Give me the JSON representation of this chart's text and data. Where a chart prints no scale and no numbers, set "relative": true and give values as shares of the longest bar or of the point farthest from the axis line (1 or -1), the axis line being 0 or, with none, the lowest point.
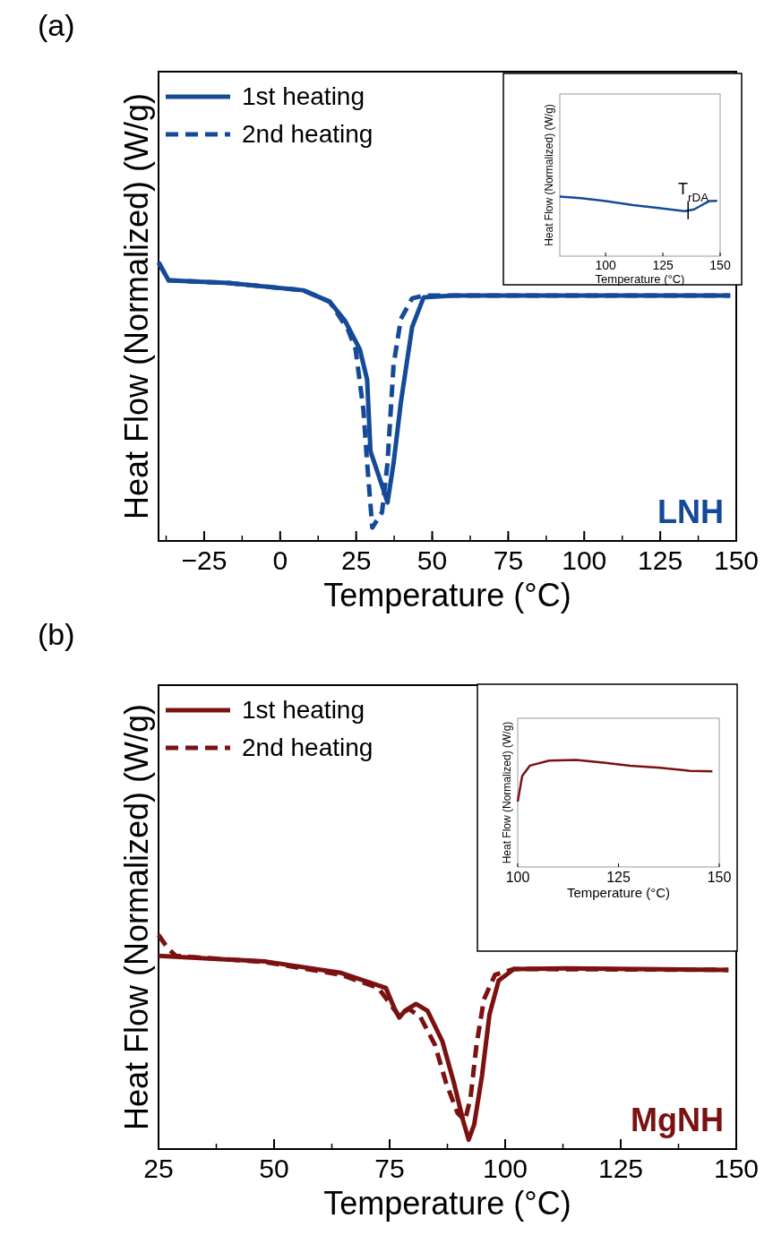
{
  "chart_data": [
    {
      "type": "line",
      "xlabel": "Temperature (°C)",
      "ylabel": "Heat Flow (Normalized) (W/g)",
      "relative": true,
      "xlim": [
        -40,
        150
      ],
      "xticks": [
        -25,
        0,
        25,
        50,
        75,
        100,
        125,
        150
      ],
      "legend": "top left",
      "annotations": [
        "(a)",
        "LNH"
      ],
      "series": [
        {
          "name": "1st heating",
          "color": "#154a99",
          "line_style": "solid",
          "x": [
            -40,
            -36.7,
            -16.9,
            7.6,
            16.3,
            21.3,
            26.2,
            28.6,
            29.7,
            33.5,
            35.3,
            37.3,
            39.7,
            43.4,
            47.2,
            56.9,
            148
          ],
          "values": [
            1.0,
            0.936,
            0.926,
            0.9,
            0.859,
            0.791,
            0.688,
            0.579,
            0.322,
            0.199,
            0.138,
            0.28,
            0.498,
            0.768,
            0.875,
            0.881,
            0.881
          ]
        },
        {
          "name": "2nd heating",
          "color": "#154a99",
          "line_style": "dashed",
          "x": [
            -40,
            -36.7,
            -16.9,
            7.6,
            16.3,
            22.4,
            24.8,
            27.4,
            28.6,
            30.3,
            33.5,
            35.3,
            37.3,
            39.7,
            43.4,
            47.2,
            56.9,
            148
          ],
          "values": [
            1.0,
            0.936,
            0.926,
            0.9,
            0.859,
            0.756,
            0.688,
            0.469,
            0.28,
            0.048,
            0.103,
            0.28,
            0.633,
            0.797,
            0.871,
            0.881,
            0.881,
            0.881
          ]
        }
      ]
    },
    {
      "type": "line",
      "xlabel": "Temperature (°C)",
      "ylabel": "Heat Flow (Normalized) (W/g)",
      "relative": true,
      "xlim": [
        80,
        150
      ],
      "xticks": [
        100,
        125,
        150
      ],
      "annotations": [
        {
          "text": "T$_{rDA}$",
          "x": 136,
          "y": 0.77
        }
      ],
      "series": [
        {
          "color": "#154a99",
          "x": [
            80,
            89.3,
            100,
            112,
            124,
            134.7,
            138.7,
            142.7,
            145.3,
            148.7
          ],
          "values": [
            1.0,
            0.974,
            0.923,
            0.856,
            0.805,
            0.754,
            0.785,
            0.872,
            0.923,
            0.928
          ]
        }
      ]
    },
    {
      "type": "line",
      "xlabel": "Temperature (°C)",
      "ylabel": "Heat Flow (Normalized) (W/g)",
      "relative": true,
      "xlim": [
        25,
        150
      ],
      "xticks": [
        25,
        50,
        75,
        100,
        125,
        150
      ],
      "legend": "top left",
      "annotations": [
        "(b)",
        "MgNH"
      ],
      "series": [
        {
          "name": "1st heating",
          "color": "#7b1111",
          "line_style": "solid",
          "x": [
            25,
            48.2,
            64.5,
            74.2,
            75.9,
            77.1,
            78.3,
            80.7,
            83.2,
            86.4,
            88.9,
            90.9,
            92.1,
            93.3,
            95.0,
            96.6,
            98.6,
            101.9,
            113.3,
            148.3
          ],
          "values": [
            0.903,
            0.876,
            0.823,
            0.752,
            0.664,
            0.614,
            0.646,
            0.678,
            0.646,
            0.504,
            0.31,
            0.133,
            0.044,
            0.115,
            0.345,
            0.628,
            0.788,
            0.841,
            0.844,
            0.837
          ]
        },
        {
          "name": "2nd heating",
          "color": "#7b1111",
          "line_style": "dashed",
          "x": [
            25,
            27.0,
            28.7,
            48.2,
            64.5,
            72.6,
            75.9,
            77.1,
            79.1,
            81.6,
            84.8,
            87.2,
            89.7,
            91.3,
            92.5,
            93.8,
            95.4,
            97.8,
            101.9,
            148.3
          ],
          "values": [
            1.0,
            0.938,
            0.903,
            0.873,
            0.814,
            0.752,
            0.655,
            0.619,
            0.655,
            0.619,
            0.487,
            0.31,
            0.168,
            0.133,
            0.239,
            0.487,
            0.699,
            0.814,
            0.841,
            0.837
          ]
        }
      ]
    },
    {
      "type": "line",
      "xlabel": "Temperature (°C)",
      "ylabel": "Heat Flow (Normalized) (W/g)",
      "relative": true,
      "xlim": [
        100,
        150
      ],
      "xticks": [
        100,
        125,
        150
      ],
      "series": [
        {
          "color": "#7b1111",
          "x": [
            100,
            101.1,
            103,
            107.8,
            114.5,
            121.2,
            127.9,
            135.3,
            142.7,
            148.3
          ],
          "values": [
            0.612,
            0.849,
            0.947,
            0.994,
            1.0,
            0.975,
            0.947,
            0.927,
            0.899,
            0.894
          ]
        }
      ]
    }
  ]
}
